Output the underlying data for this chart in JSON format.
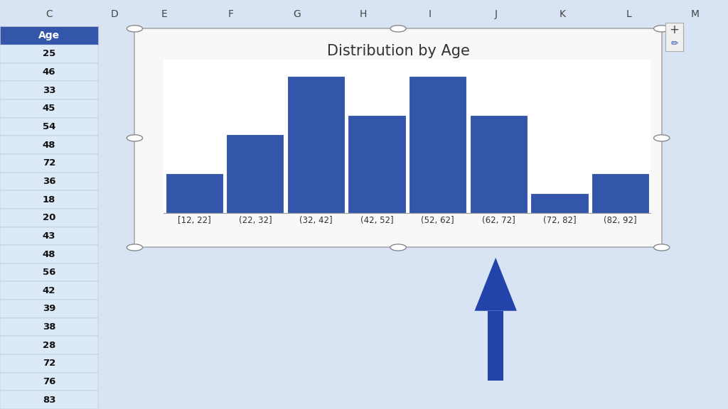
{
  "title": "Distribution by Age",
  "categories": [
    "[12, 22]",
    "(22, 32]",
    "(32, 42]",
    "(42, 52]",
    "(52, 62]",
    "(62, 72]",
    "(72, 82]",
    "(82, 92]"
  ],
  "values": [
    2,
    4,
    7,
    5,
    7,
    5,
    1,
    2
  ],
  "bar_color": "#3355AA",
  "bar_edge_color": "#FFFFFF",
  "background_color": "#FFFFFF",
  "plot_bg_color": "#FFFFFF",
  "grid_color": "#CCCCCC",
  "title_fontsize": 15,
  "tick_fontsize": 9,
  "outer_bg_color": "#D8E4F3",
  "excel_col_header_color": "#3355AA",
  "excel_row_bg": "#DCE9F7",
  "spreadsheet_data": [
    25,
    46,
    33,
    45,
    54,
    48,
    72,
    36,
    18,
    20,
    43,
    48,
    56,
    42,
    39,
    38,
    28,
    72,
    76,
    83
  ],
  "arrow_color": "#2244AA",
  "col_labels": [
    "C",
    "D",
    "E",
    "F",
    "G",
    "H",
    "I",
    "J",
    "K",
    "L",
    "M"
  ],
  "chart_frame_color": "#AAAAAA",
  "chart_bg_color": "#F8F8F8"
}
